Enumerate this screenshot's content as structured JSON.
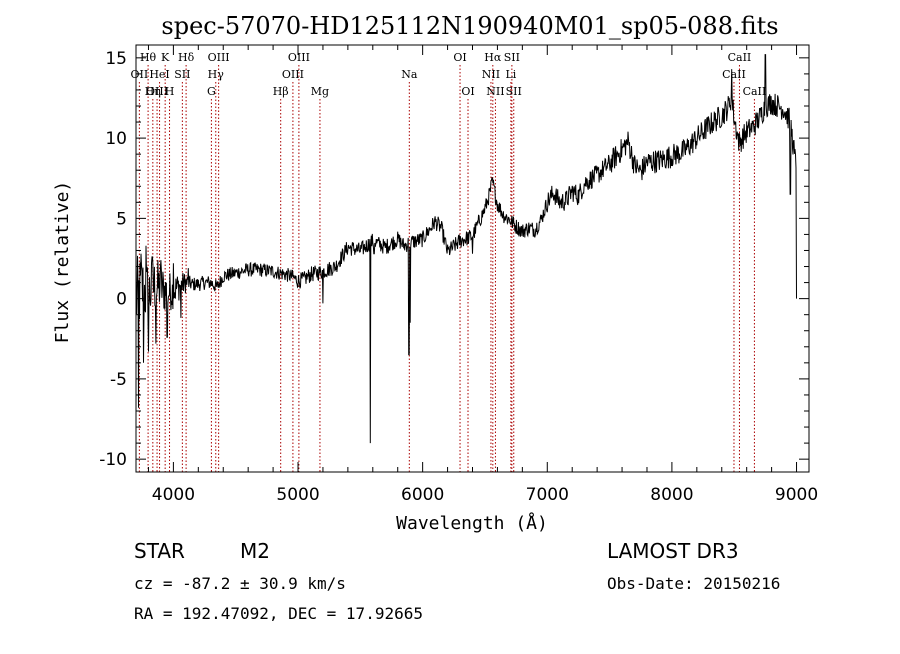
{
  "chart_data": {
    "type": "line",
    "title": "spec-57070-HD125112N190940M01_sp05-088.fits",
    "xlabel": "Wavelength (Å)",
    "ylabel": "Flux (relative)",
    "xlim": [
      3700,
      9100
    ],
    "ylim": [
      -10.8,
      15.8
    ],
    "xticks": [
      4000,
      5000,
      6000,
      7000,
      8000,
      9000
    ],
    "yticks": [
      -10,
      -5,
      0,
      5,
      10,
      15
    ],
    "grid": false,
    "legend": "none",
    "series": [
      {
        "name": "spectrum",
        "anchors": [
          [
            3700,
            0
          ],
          [
            3750,
            0.6
          ],
          [
            3800,
            0.3
          ],
          [
            3850,
            0.8
          ],
          [
            3900,
            0.7
          ],
          [
            3950,
            0.4
          ],
          [
            4000,
            0.5
          ],
          [
            4050,
            0.8
          ],
          [
            4100,
            1.0
          ],
          [
            4150,
            0.9
          ],
          [
            4200,
            0.9
          ],
          [
            4250,
            1.0
          ],
          [
            4300,
            1.0
          ],
          [
            4350,
            0.7
          ],
          [
            4400,
            1.4
          ],
          [
            4500,
            1.6
          ],
          [
            4600,
            1.8
          ],
          [
            4700,
            1.8
          ],
          [
            4800,
            1.7
          ],
          [
            4900,
            1.5
          ],
          [
            4950,
            1.4
          ],
          [
            5000,
            1.1
          ],
          [
            5050,
            1.2
          ],
          [
            5100,
            1.5
          ],
          [
            5200,
            1.7
          ],
          [
            5300,
            2.0
          ],
          [
            5400,
            3.2
          ],
          [
            5500,
            3.0
          ],
          [
            5600,
            3.6
          ],
          [
            5700,
            3.2
          ],
          [
            5800,
            3.7
          ],
          [
            5850,
            3.3
          ],
          [
            5900,
            3.5
          ],
          [
            5950,
            3.6
          ],
          [
            6000,
            3.7
          ],
          [
            6100,
            4.8
          ],
          [
            6150,
            4.4
          ],
          [
            6200,
            2.9
          ],
          [
            6300,
            3.6
          ],
          [
            6400,
            3.9
          ],
          [
            6500,
            5.6
          ],
          [
            6540,
            6.6
          ],
          [
            6560,
            7.3
          ],
          [
            6600,
            5.9
          ],
          [
            6650,
            5.2
          ],
          [
            6700,
            4.9
          ],
          [
            6750,
            4.5
          ],
          [
            6800,
            4.2
          ],
          [
            6850,
            4.4
          ],
          [
            6900,
            4.3
          ],
          [
            6950,
            4.9
          ],
          [
            7000,
            6.0
          ],
          [
            7050,
            6.6
          ],
          [
            7100,
            6.0
          ],
          [
            7150,
            6.1
          ],
          [
            7200,
            6.7
          ],
          [
            7250,
            6.4
          ],
          [
            7300,
            7.2
          ],
          [
            7400,
            7.7
          ],
          [
            7500,
            8.4
          ],
          [
            7600,
            9.3
          ],
          [
            7650,
            9.8
          ],
          [
            7700,
            8.3
          ],
          [
            7750,
            7.9
          ],
          [
            7800,
            8.5
          ],
          [
            7900,
            8.6
          ],
          [
            8000,
            8.9
          ],
          [
            8100,
            9.2
          ],
          [
            8200,
            10.0
          ],
          [
            8300,
            10.8
          ],
          [
            8400,
            11.4
          ],
          [
            8450,
            11.9
          ],
          [
            8480,
            12.6
          ],
          [
            8500,
            11.2
          ],
          [
            8540,
            9.7
          ],
          [
            8600,
            10.4
          ],
          [
            8650,
            10.7
          ],
          [
            8700,
            11.2
          ],
          [
            8750,
            12.0
          ],
          [
            8800,
            12.2
          ],
          [
            8850,
            12.0
          ],
          [
            8900,
            11.8
          ],
          [
            8950,
            11.0
          ],
          [
            9000,
            8.0
          ]
        ],
        "spikes": [
          [
            5580,
            -9.0
          ],
          [
            5610,
            2.8
          ],
          [
            5890,
            -3.5
          ],
          [
            5900,
            -1.5
          ],
          [
            5200,
            -0.3
          ],
          [
            6400,
            2.8
          ],
          [
            8480,
            14.3
          ],
          [
            8750,
            15.2
          ],
          [
            8950,
            6.5
          ],
          [
            9000,
            0.0
          ],
          [
            3720,
            -6.8
          ],
          [
            3740,
            2.8
          ],
          [
            3760,
            -4.0
          ],
          [
            3780,
            3.3
          ],
          [
            3800,
            -3.3
          ],
          [
            3830,
            2.6
          ],
          [
            3860,
            -2.8
          ],
          [
            3900,
            2.4
          ],
          [
            3950,
            -2.4
          ],
          [
            4000,
            2.2
          ],
          [
            4060,
            -1.2
          ],
          [
            4120,
            1.9
          ]
        ]
      }
    ],
    "spectral_lines": [
      {
        "label": "Hθ",
        "x": 3797,
        "row": 0
      },
      {
        "label": "OII",
        "x": 3727,
        "row": 1
      },
      {
        "label": "OIII",
        "x": 3869,
        "row": 2
      },
      {
        "label": "K",
        "x": 3934,
        "row": 0
      },
      {
        "label": "HeI",
        "x": 3889,
        "row": 1
      },
      {
        "label": "Hη",
        "x": 3835,
        "row": 2
      },
      {
        "label": "SII",
        "x": 4072,
        "row": 1
      },
      {
        "label": "H",
        "x": 3969,
        "row": 2
      },
      {
        "label": "Hδ",
        "x": 4102,
        "row": 0
      },
      {
        "label": "OIII",
        "x": 4363,
        "row": 0
      },
      {
        "label": "Hγ",
        "x": 4340,
        "row": 1
      },
      {
        "label": "G",
        "x": 4305,
        "row": 2
      },
      {
        "label": "OIII",
        "x": 5007,
        "row": 0
      },
      {
        "label": "OIII",
        "x": 4959,
        "row": 1
      },
      {
        "label": "Hβ",
        "x": 4861,
        "row": 2
      },
      {
        "label": "Mg",
        "x": 5176,
        "row": 2
      },
      {
        "label": "Na",
        "x": 5893,
        "row": 1
      },
      {
        "label": "OI",
        "x": 6300,
        "row": 0
      },
      {
        "label": "OI",
        "x": 6364,
        "row": 2
      },
      {
        "label": "Hα",
        "x": 6563,
        "row": 0
      },
      {
        "label": "NII",
        "x": 6548,
        "row": 1
      },
      {
        "label": "NII",
        "x": 6584,
        "row": 2
      },
      {
        "label": "SII",
        "x": 6716,
        "row": 0
      },
      {
        "label": "Li",
        "x": 6708,
        "row": 1
      },
      {
        "label": "SII",
        "x": 6731,
        "row": 2
      },
      {
        "label": "CaII",
        "x": 8542,
        "row": 0
      },
      {
        "label": "CaII",
        "x": 8498,
        "row": 1
      },
      {
        "label": "CaII",
        "x": 8662,
        "row": 2
      }
    ]
  },
  "info": {
    "object_class": "STAR",
    "subclass": "M2",
    "survey": "LAMOST DR3",
    "cz_line": "cz = -87.2 ± 30.9 km/s",
    "obs_date": "Obs-Date: 20150216",
    "coords_line": "RA = 192.47092, DEC =  17.92665"
  },
  "colors": {
    "line_marker": "#aa0000",
    "spectrum": "#000000",
    "axes": "#000000"
  }
}
